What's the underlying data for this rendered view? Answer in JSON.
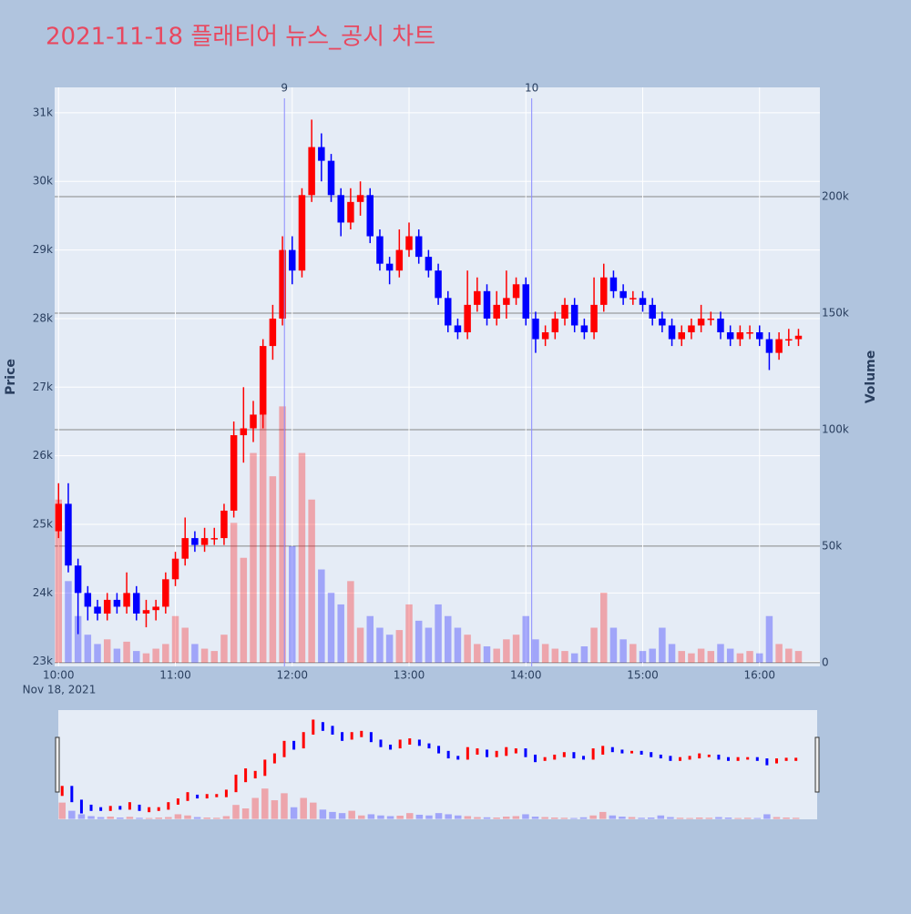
{
  "chart_data": {
    "type": "candlestick",
    "title": "2021-11-18 플래티어 뉴스_공시 차트",
    "ylabel": "Price",
    "y2label": "Volume",
    "x_date_label": "Nov 18, 2021",
    "x": [
      "2021-11-18 10:00",
      "2021-11-18 10:05",
      "2021-11-18 10:10",
      "2021-11-18 10:15",
      "2021-11-18 10:20",
      "2021-11-18 10:25",
      "2021-11-18 10:30",
      "2021-11-18 10:35",
      "2021-11-18 10:40",
      "2021-11-18 10:45",
      "2021-11-18 10:50",
      "2021-11-18 10:55",
      "2021-11-18 11:00",
      "2021-11-18 11:05",
      "2021-11-18 11:10",
      "2021-11-18 11:15",
      "2021-11-18 11:20",
      "2021-11-18 11:25",
      "2021-11-18 11:30",
      "2021-11-18 11:35",
      "2021-11-18 11:40",
      "2021-11-18 11:45",
      "2021-11-18 11:50",
      "2021-11-18 11:55",
      "2021-11-18 12:00",
      "2021-11-18 12:05",
      "2021-11-18 12:10",
      "2021-11-18 12:15",
      "2021-11-18 12:20",
      "2021-11-18 12:25",
      "2021-11-18 12:30",
      "2021-11-18 12:35",
      "2021-11-18 12:40",
      "2021-11-18 12:45",
      "2021-11-18 12:50",
      "2021-11-18 12:55",
      "2021-11-18 13:00",
      "2021-11-18 13:05",
      "2021-11-18 13:10",
      "2021-11-18 13:15",
      "2021-11-18 13:20",
      "2021-11-18 13:25",
      "2021-11-18 13:30",
      "2021-11-18 13:35",
      "2021-11-18 13:40",
      "2021-11-18 13:45",
      "2021-11-18 13:50",
      "2021-11-18 13:55",
      "2021-11-18 14:00",
      "2021-11-18 14:05",
      "2021-11-18 14:10",
      "2021-11-18 14:15",
      "2021-11-18 14:20",
      "2021-11-18 14:25",
      "2021-11-18 14:30",
      "2021-11-18 14:35",
      "2021-11-18 14:40",
      "2021-11-18 14:45",
      "2021-11-18 14:50",
      "2021-11-18 14:55",
      "2021-11-18 15:00",
      "2021-11-18 15:05",
      "2021-11-18 15:10",
      "2021-11-18 15:15",
      "2021-11-18 15:20",
      "2021-11-18 15:25",
      "2021-11-18 15:30",
      "2021-11-18 15:35",
      "2021-11-18 15:40",
      "2021-11-18 15:45",
      "2021-11-18 15:50",
      "2021-11-18 15:55",
      "2021-11-18 16:00",
      "2021-11-18 16:05",
      "2021-11-18 16:10",
      "2021-11-18 16:15",
      "2021-11-18 16:20"
    ],
    "open": [
      24900,
      25300,
      24400,
      24000,
      23800,
      23700,
      23900,
      23800,
      24000,
      23700,
      23750,
      23800,
      24200,
      24500,
      24800,
      24700,
      24800,
      24800,
      25200,
      26300,
      26400,
      26600,
      27600,
      28000,
      29000,
      28700,
      29800,
      30500,
      30300,
      29800,
      29400,
      29700,
      29800,
      29200,
      28800,
      28700,
      29000,
      29200,
      28900,
      28700,
      28300,
      27900,
      27800,
      28200,
      28400,
      28000,
      28200,
      28300,
      28500,
      28000,
      27700,
      27800,
      28000,
      28200,
      27900,
      27800,
      28200,
      28600,
      28400,
      28300,
      28300,
      28200,
      28000,
      27900,
      27700,
      27800,
      27900,
      28000,
      28000,
      27800,
      27700,
      27800,
      27800,
      27700,
      27500,
      27700,
      27700
    ],
    "high": [
      25600,
      25600,
      24500,
      24100,
      23900,
      24000,
      24000,
      24300,
      24100,
      23900,
      23900,
      24300,
      24600,
      25100,
      24900,
      24950,
      24950,
      25300,
      26500,
      27000,
      26800,
      27700,
      28200,
      29200,
      29200,
      29900,
      30900,
      30700,
      30400,
      29900,
      29900,
      30000,
      29900,
      29300,
      28900,
      29300,
      29400,
      29300,
      29000,
      28800,
      28400,
      28000,
      28700,
      28600,
      28500,
      28400,
      28700,
      28600,
      28600,
      28100,
      27900,
      28100,
      28300,
      28300,
      28000,
      28600,
      28800,
      28700,
      28500,
      28400,
      28400,
      28300,
      28100,
      28000,
      27900,
      28000,
      28200,
      28100,
      28100,
      27900,
      27900,
      27900,
      27900,
      27800,
      27800,
      27850,
      27850
    ],
    "low": [
      24800,
      24300,
      23400,
      23600,
      23600,
      23600,
      23700,
      23700,
      23600,
      23500,
      23600,
      23700,
      24100,
      24400,
      24600,
      24600,
      24700,
      24700,
      25100,
      25900,
      26200,
      26400,
      27400,
      27900,
      28500,
      28600,
      29700,
      30000,
      29700,
      29200,
      29300,
      29500,
      29100,
      28700,
      28500,
      28600,
      28900,
      28800,
      28600,
      28200,
      27800,
      27700,
      27700,
      28100,
      27900,
      27900,
      28000,
      28200,
      27900,
      27500,
      27600,
      27700,
      27900,
      27800,
      27700,
      27700,
      28100,
      28300,
      28200,
      28200,
      28100,
      27900,
      27800,
      27600,
      27600,
      27700,
      27800,
      27900,
      27700,
      27600,
      27600,
      27700,
      27600,
      27250,
      27400,
      27600,
      27600
    ],
    "close": [
      25300,
      24400,
      24000,
      23800,
      23700,
      23900,
      23800,
      24000,
      23700,
      23750,
      23800,
      24200,
      24500,
      24800,
      24700,
      24800,
      24800,
      25200,
      26300,
      26400,
      26600,
      27600,
      28000,
      29000,
      28700,
      29800,
      30500,
      30300,
      29800,
      29400,
      29700,
      29800,
      29200,
      28800,
      28700,
      29000,
      29200,
      28900,
      28700,
      28300,
      27900,
      27800,
      28200,
      28400,
      28000,
      28200,
      28300,
      28500,
      28000,
      27700,
      27800,
      28000,
      28200,
      27900,
      27800,
      28200,
      28600,
      28400,
      28300,
      28300,
      28200,
      28000,
      27900,
      27700,
      27800,
      27900,
      28000,
      28000,
      27800,
      27700,
      27800,
      27800,
      27700,
      27500,
      27700,
      27700,
      27750
    ],
    "volume": [
      70000,
      35000,
      20000,
      12000,
      8000,
      10000,
      6000,
      9000,
      5000,
      4000,
      6000,
      8000,
      20000,
      15000,
      8000,
      6000,
      5000,
      12000,
      60000,
      45000,
      90000,
      130000,
      80000,
      110000,
      50000,
      90000,
      70000,
      40000,
      30000,
      25000,
      35000,
      15000,
      20000,
      15000,
      12000,
      14000,
      25000,
      18000,
      15000,
      25000,
      20000,
      15000,
      12000,
      8000,
      7000,
      6000,
      10000,
      12000,
      20000,
      10000,
      8000,
      6000,
      5000,
      4000,
      7000,
      15000,
      30000,
      15000,
      10000,
      8000,
      5000,
      6000,
      15000,
      8000,
      5000,
      4000,
      6000,
      5000,
      8000,
      6000,
      4000,
      5000,
      4000,
      20000,
      8000,
      6000,
      5000
    ],
    "colors": {
      "increasing": "#ff0000",
      "decreasing": "#0000ff"
    },
    "xlim": [
      "2021-11-18 09:58",
      "2021-11-18 16:31"
    ],
    "xticks": [
      {
        "value": "2021-11-18 10:00",
        "label": "10:00"
      },
      {
        "value": "2021-11-18 11:00",
        "label": "11:00"
      },
      {
        "value": "2021-11-18 12:00",
        "label": "12:00"
      },
      {
        "value": "2021-11-18 13:00",
        "label": "13:00"
      },
      {
        "value": "2021-11-18 14:00",
        "label": "14:00"
      },
      {
        "value": "2021-11-18 15:00",
        "label": "15:00"
      },
      {
        "value": "2021-11-18 16:00",
        "label": "16:00"
      }
    ],
    "ylim": [
      22930,
      31370
    ],
    "yticks": [
      {
        "value": 23000,
        "label": "23k"
      },
      {
        "value": 24000,
        "label": "24k"
      },
      {
        "value": 25000,
        "label": "25k"
      },
      {
        "value": 26000,
        "label": "26k"
      },
      {
        "value": 27000,
        "label": "27k"
      },
      {
        "value": 28000,
        "label": "28k"
      },
      {
        "value": 29000,
        "label": "29k"
      },
      {
        "value": 30000,
        "label": "30k"
      },
      {
        "value": 31000,
        "label": "31k"
      }
    ],
    "y2lim": [
      -1600,
      246900
    ],
    "y2ticks": [
      0,
      {
        "value": 50000,
        "label": "50k"
      },
      {
        "value": 100000,
        "label": "100k"
      },
      {
        "value": 150000,
        "label": "150k"
      },
      {
        "value": 200000,
        "label": "200k"
      }
    ],
    "annotations": [
      {
        "x": "2021-11-18 11:56",
        "label": "9"
      },
      {
        "x": "2021-11-18 14:03",
        "label": "10"
      }
    ],
    "rangeslider": true
  }
}
